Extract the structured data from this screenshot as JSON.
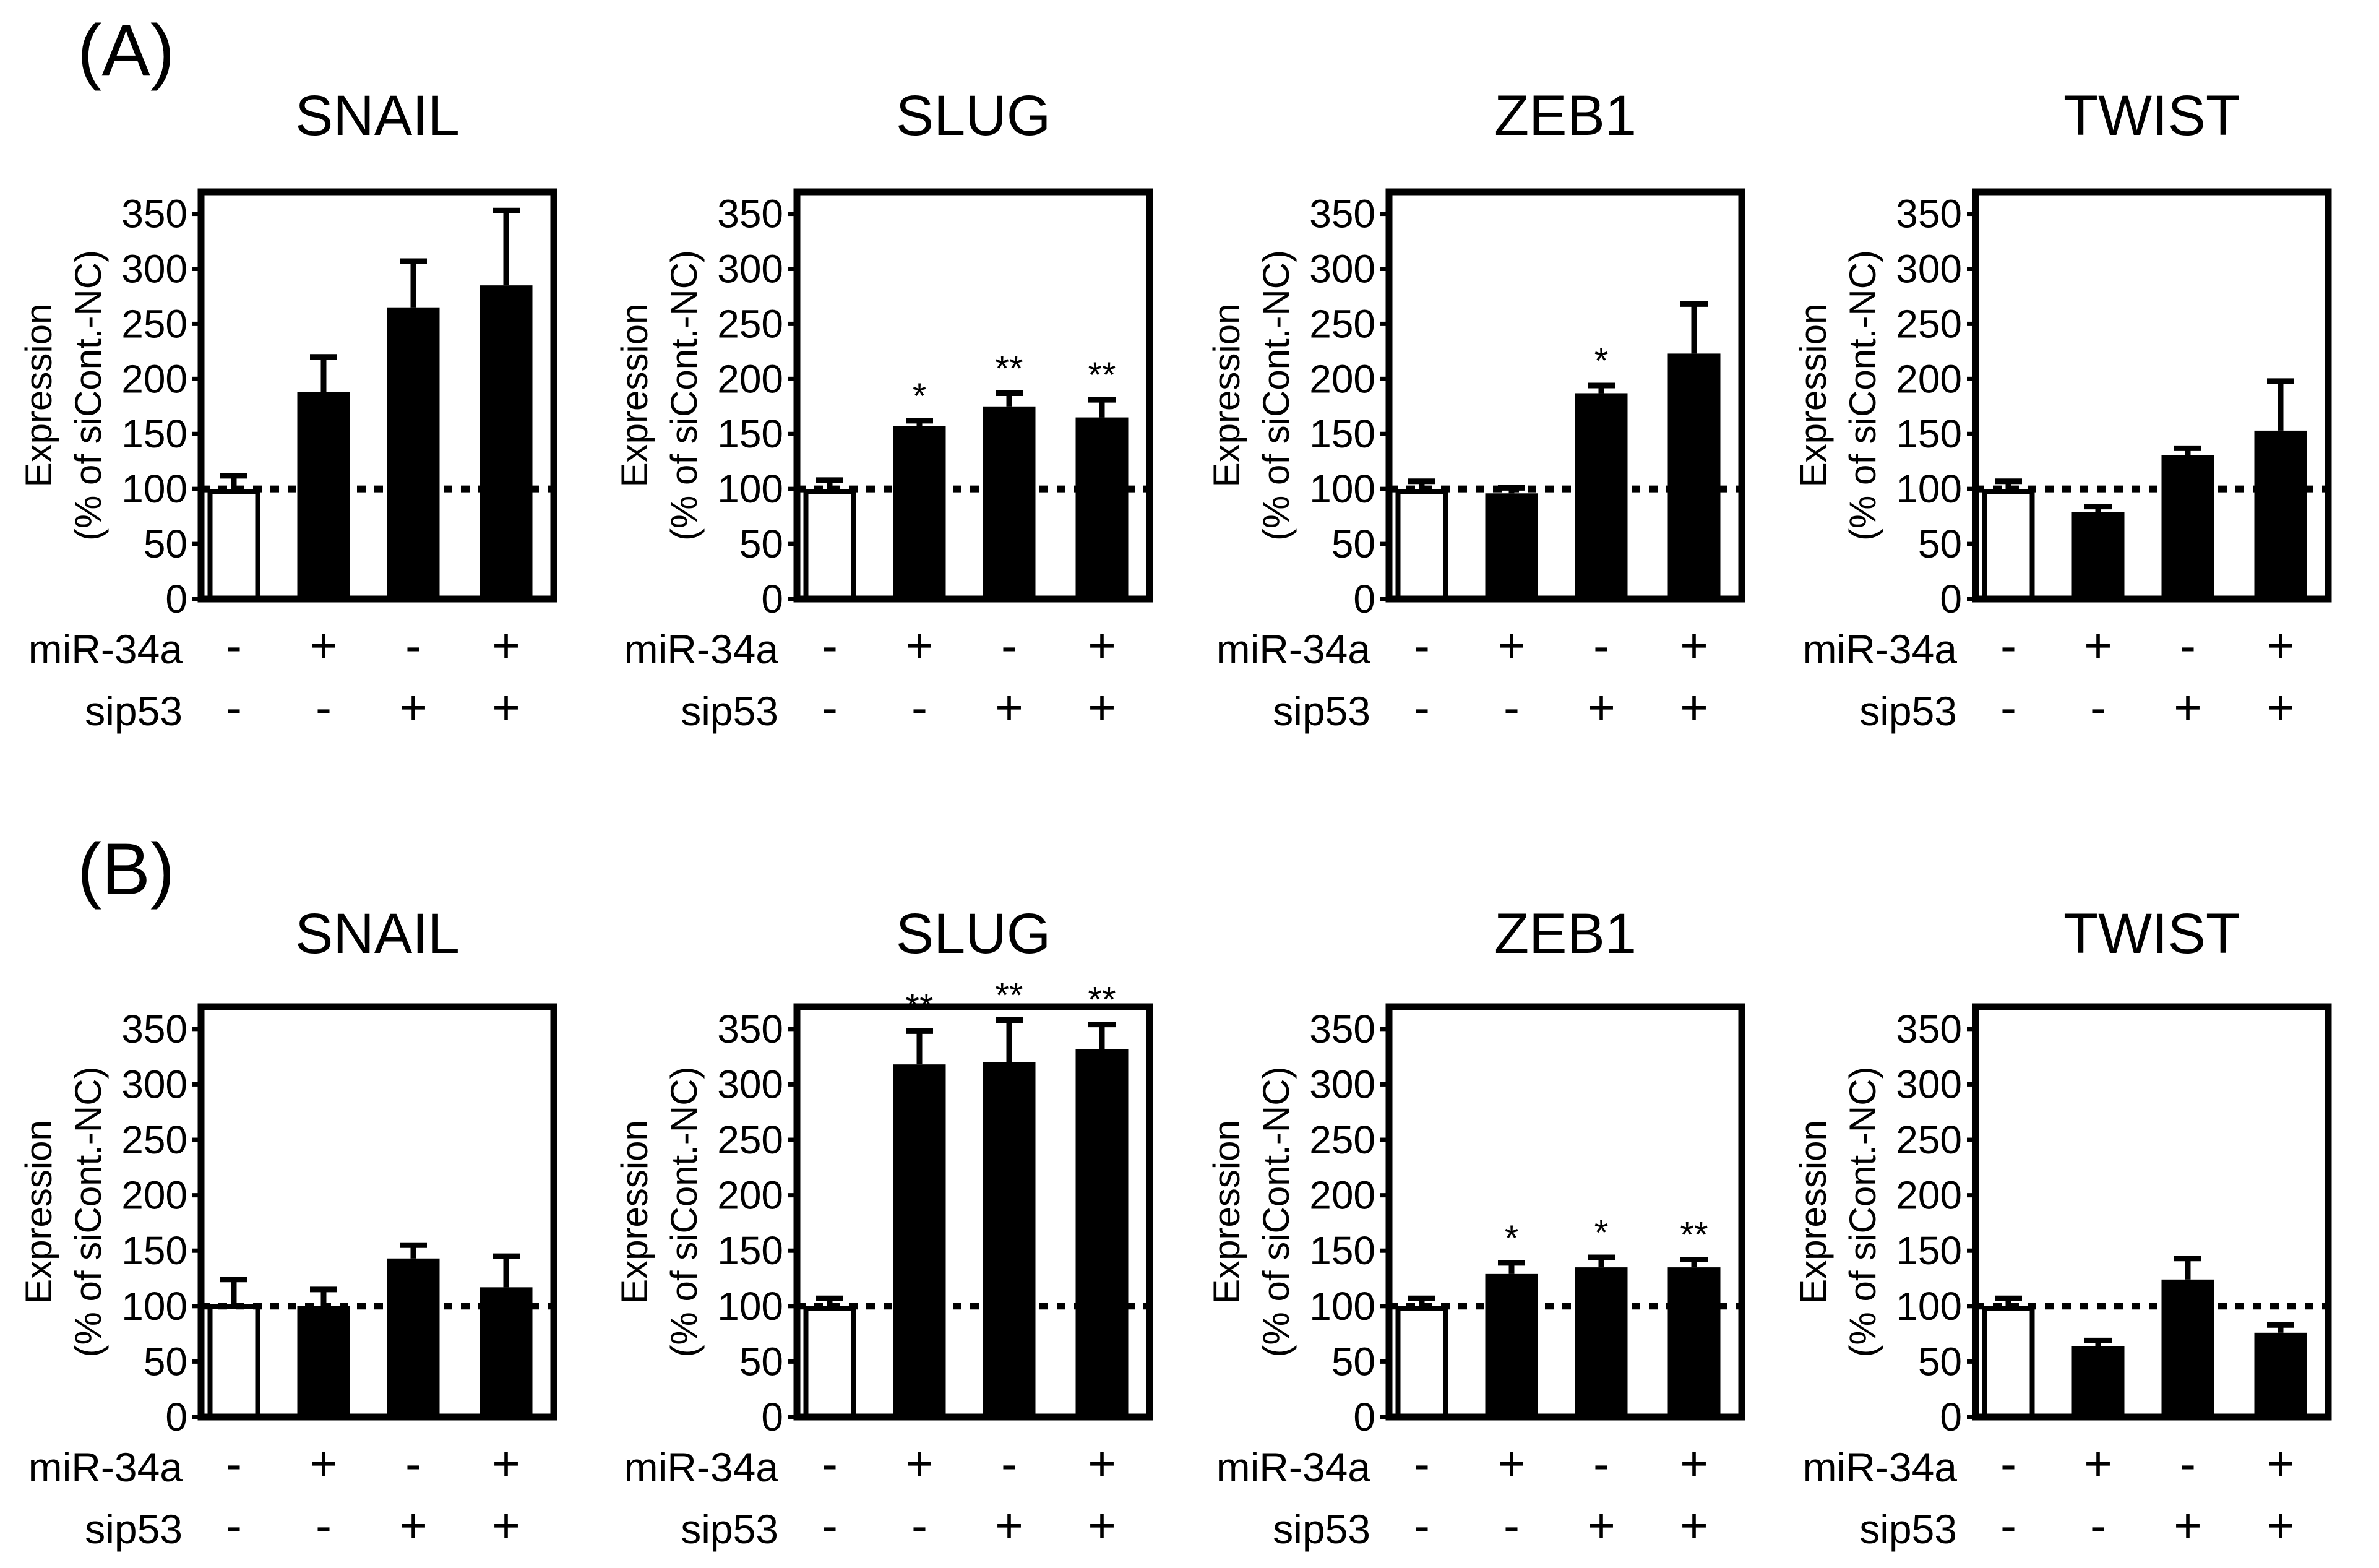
{
  "panel_labels": [
    "(A)",
    "(B)"
  ],
  "y_axis_label_line1": "Expression",
  "y_axis_label_line2": "(% of siCont.-NC)",
  "row_labels": [
    "miR-34a",
    "sip53"
  ],
  "conditions": [
    {
      "miR34a": "-",
      "sip53": "-"
    },
    {
      "miR34a": "+",
      "sip53": "-"
    },
    {
      "miR34a": "-",
      "sip53": "+"
    },
    {
      "miR34a": "+",
      "sip53": "+"
    }
  ],
  "chart_data": [
    {
      "panel": "A",
      "type": "bar",
      "title": "SNAIL",
      "ylim": [
        0,
        370
      ],
      "yticks": [
        0,
        50,
        100,
        150,
        200,
        250,
        300,
        350
      ],
      "reference_line": 100,
      "values": [
        100,
        188,
        265,
        285
      ],
      "errors": [
        12,
        32,
        42,
        68
      ],
      "significance": [
        "",
        "",
        "",
        ""
      ]
    },
    {
      "panel": "A",
      "type": "bar",
      "title": "SLUG",
      "ylim": [
        0,
        370
      ],
      "yticks": [
        0,
        50,
        100,
        150,
        200,
        250,
        300,
        350
      ],
      "reference_line": 100,
      "values": [
        100,
        157,
        175,
        165
      ],
      "errors": [
        8,
        5,
        12,
        16
      ],
      "significance": [
        "",
        "*",
        "**",
        "**"
      ]
    },
    {
      "panel": "A",
      "type": "bar",
      "title": "ZEB1",
      "ylim": [
        0,
        370
      ],
      "yticks": [
        0,
        50,
        100,
        150,
        200,
        250,
        300,
        350
      ],
      "reference_line": 100,
      "values": [
        100,
        96,
        187,
        223
      ],
      "errors": [
        7,
        5,
        7,
        45
      ],
      "significance": [
        "",
        "",
        "*",
        ""
      ]
    },
    {
      "panel": "A",
      "type": "bar",
      "title": "TWIST",
      "ylim": [
        0,
        370
      ],
      "yticks": [
        0,
        50,
        100,
        150,
        200,
        250,
        300,
        350
      ],
      "reference_line": 100,
      "values": [
        100,
        79,
        131,
        153
      ],
      "errors": [
        7,
        5,
        6,
        45
      ],
      "significance": [
        "",
        "",
        "",
        ""
      ]
    },
    {
      "panel": "B",
      "type": "bar",
      "title": "SNAIL",
      "ylim": [
        0,
        370
      ],
      "yticks": [
        0,
        50,
        100,
        150,
        200,
        250,
        300,
        350
      ],
      "reference_line": 100,
      "values": [
        102,
        100,
        143,
        117
      ],
      "errors": [
        22,
        15,
        12,
        28
      ],
      "significance": [
        "",
        "",
        "",
        ""
      ]
    },
    {
      "panel": "B",
      "type": "bar",
      "title": "SLUG",
      "ylim": [
        0,
        370
      ],
      "yticks": [
        0,
        50,
        100,
        150,
        200,
        250,
        300,
        350
      ],
      "reference_line": 100,
      "values": [
        100,
        318,
        320,
        332
      ],
      "errors": [
        7,
        30,
        38,
        22
      ],
      "significance": [
        "",
        "**",
        "**",
        "**"
      ]
    },
    {
      "panel": "B",
      "type": "bar",
      "title": "ZEB1",
      "ylim": [
        0,
        370
      ],
      "yticks": [
        0,
        50,
        100,
        150,
        200,
        250,
        300,
        350
      ],
      "reference_line": 100,
      "values": [
        100,
        129,
        135,
        135
      ],
      "errors": [
        7,
        10,
        9,
        7
      ],
      "significance": [
        "",
        "*",
        "*",
        "**"
      ]
    },
    {
      "panel": "B",
      "type": "bar",
      "title": "TWIST",
      "ylim": [
        0,
        370
      ],
      "yticks": [
        0,
        50,
        100,
        150,
        200,
        250,
        300,
        350
      ],
      "reference_line": 100,
      "values": [
        100,
        64,
        124,
        76
      ],
      "errors": [
        7,
        5,
        19,
        7
      ],
      "significance": [
        "",
        "",
        "",
        ""
      ]
    }
  ]
}
